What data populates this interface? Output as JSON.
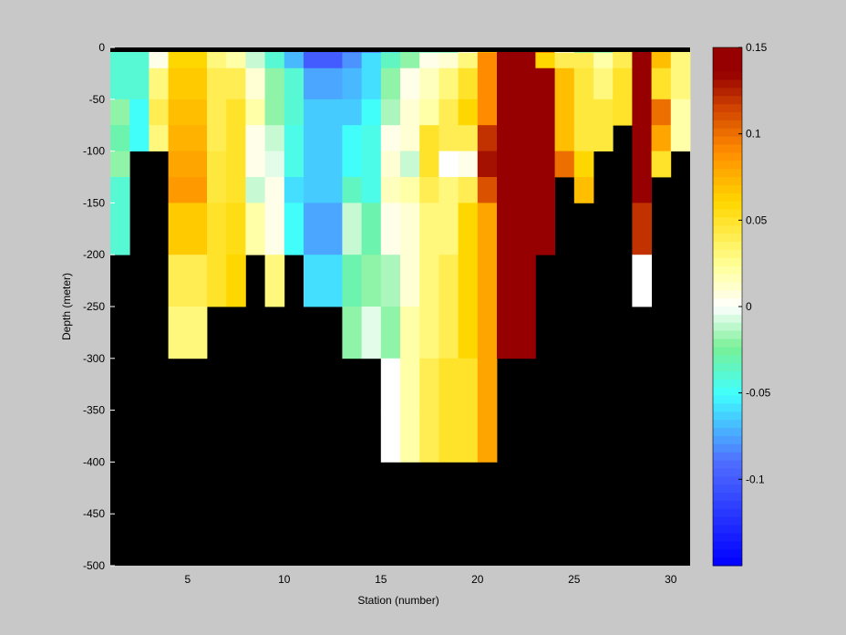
{
  "chart_data": {
    "type": "heatmap",
    "title": "",
    "xlabel": "Station (number)",
    "ylabel": "Depth (meter)",
    "xlim": [
      1,
      31
    ],
    "ylim": [
      -500,
      0
    ],
    "x_ticks": [
      5,
      10,
      15,
      20,
      25,
      30
    ],
    "y_ticks": [
      0,
      -50,
      -100,
      -150,
      -200,
      -250,
      -300,
      -350,
      -400,
      -450,
      -500
    ],
    "y_ticks_labels": [
      "0",
      "-50",
      "-100",
      "-150",
      "-200",
      "-250",
      "-300",
      "-350",
      "-400",
      "-450",
      "-500"
    ],
    "colorbar": {
      "range": [
        -0.15,
        0.15
      ],
      "ticks": [
        0.15,
        0.1,
        0.05,
        0,
        -0.05,
        -0.1
      ],
      "tick_labels": [
        "0.15",
        "0.1",
        "0.05",
        "0",
        "-0.05",
        "-0.1"
      ],
      "colormap": "jet-white"
    },
    "stations": [
      1,
      2,
      3,
      4,
      5,
      6,
      7,
      8,
      9,
      10,
      11,
      12,
      13,
      14,
      15,
      16,
      17,
      18,
      19,
      20,
      21,
      22,
      23,
      24,
      25,
      26,
      27,
      28,
      29,
      30
    ],
    "depth_bin_edges": [
      0,
      -5,
      -20,
      -50,
      -75,
      -100,
      -125,
      -150,
      -200,
      -250,
      -300,
      -350,
      -400,
      -500
    ],
    "values_by_station": [
      [
        -0.04,
        -0.04,
        -0.04,
        -0.02,
        -0.03,
        -0.02,
        -0.04,
        -0.04,
        null,
        null,
        null,
        null,
        null
      ],
      [
        -0.04,
        -0.04,
        -0.04,
        -0.05,
        -0.05,
        null,
        null,
        null,
        null,
        null,
        null,
        null,
        null
      ],
      [
        0.005,
        0.005,
        0.03,
        0.04,
        0.03,
        null,
        null,
        null,
        null,
        null,
        null,
        null,
        null
      ],
      [
        0.06,
        0.06,
        0.065,
        0.07,
        0.075,
        0.08,
        0.085,
        0.065,
        0.04,
        0.03,
        null,
        null,
        null
      ],
      [
        0.06,
        0.06,
        0.065,
        0.07,
        0.075,
        0.08,
        0.085,
        0.065,
        0.04,
        0.03,
        null,
        null,
        null
      ],
      [
        0.03,
        0.03,
        0.04,
        0.04,
        0.04,
        0.045,
        0.045,
        0.05,
        0.05,
        null,
        null,
        null,
        null
      ],
      [
        0.02,
        0.02,
        0.04,
        0.05,
        0.05,
        0.05,
        0.05,
        0.055,
        0.06,
        null,
        null,
        null,
        null
      ],
      [
        -0.01,
        -0.01,
        0.01,
        0.02,
        0.005,
        0.005,
        -0.01,
        0.02,
        null,
        null,
        null,
        null,
        null
      ],
      [
        -0.04,
        -0.04,
        -0.02,
        -0.02,
        -0.01,
        -0.005,
        0.005,
        0.005,
        0.03,
        null,
        null,
        null,
        null
      ],
      [
        -0.07,
        -0.07,
        -0.04,
        -0.04,
        -0.045,
        -0.045,
        -0.06,
        -0.05,
        null,
        null,
        null,
        null,
        null
      ],
      [
        -0.1,
        -0.1,
        -0.075,
        -0.065,
        -0.065,
        -0.065,
        -0.065,
        -0.075,
        -0.06,
        null,
        null,
        null,
        null
      ],
      [
        -0.1,
        -0.1,
        -0.075,
        -0.065,
        -0.065,
        -0.065,
        -0.065,
        -0.075,
        -0.06,
        null,
        null,
        null,
        null
      ],
      [
        -0.1,
        -0.08,
        -0.07,
        -0.065,
        -0.05,
        -0.05,
        -0.035,
        -0.01,
        -0.03,
        -0.02,
        null,
        null,
        null
      ],
      [
        -0.09,
        -0.06,
        -0.06,
        -0.05,
        -0.045,
        -0.045,
        -0.045,
        -0.03,
        -0.02,
        -0.005,
        null,
        null,
        null
      ],
      [
        -0.06,
        -0.035,
        -0.02,
        -0.015,
        0.005,
        0.01,
        0.015,
        0.005,
        -0.015,
        -0.02,
        0.0,
        0.0,
        null
      ],
      [
        -0.03,
        -0.02,
        0.005,
        0.01,
        0.01,
        -0.01,
        0.02,
        0.01,
        0.01,
        0.02,
        0.02,
        0.02,
        null
      ],
      [
        -0.035,
        0.005,
        0.015,
        0.02,
        0.05,
        0.05,
        0.04,
        0.03,
        0.03,
        0.03,
        0.04,
        0.04,
        null
      ],
      [
        -0.035,
        0.01,
        0.03,
        0.04,
        0.04,
        0.0,
        0.03,
        0.03,
        0.04,
        0.04,
        0.05,
        0.05,
        null
      ],
      [
        0.0,
        0.03,
        0.05,
        0.06,
        0.04,
        0.005,
        0.04,
        0.06,
        0.06,
        0.06,
        0.05,
        0.05,
        null
      ],
      [
        0.07,
        0.09,
        0.09,
        0.09,
        0.12,
        0.13,
        0.11,
        0.08,
        0.08,
        0.08,
        0.08,
        0.08,
        null
      ],
      [
        0.14,
        0.15,
        0.15,
        0.15,
        0.15,
        0.15,
        0.15,
        0.15,
        0.15,
        0.15,
        null,
        null,
        null
      ],
      [
        0.15,
        0.15,
        0.15,
        0.15,
        0.15,
        0.15,
        0.15,
        0.15,
        0.15,
        0.15,
        null,
        null,
        null
      ],
      [
        0.1,
        0.06,
        0.15,
        0.15,
        0.15,
        0.15,
        0.15,
        0.15,
        null,
        null,
        null,
        null,
        null
      ],
      [
        0.0,
        0.04,
        0.07,
        0.07,
        0.07,
        0.1,
        null,
        null,
        null,
        null,
        null,
        null,
        null
      ],
      [
        -0.03,
        0.04,
        0.045,
        0.045,
        0.045,
        0.06,
        0.07,
        null,
        null,
        null,
        null,
        null,
        null
      ],
      [
        -0.03,
        0.02,
        0.03,
        0.045,
        0.045,
        null,
        null,
        null,
        null,
        null,
        null,
        null,
        null
      ],
      [
        0.04,
        0.04,
        0.05,
        0.05,
        null,
        null,
        null,
        null,
        null,
        null,
        null,
        null,
        null
      ],
      [
        0.15,
        0.15,
        0.15,
        0.15,
        0.15,
        0.15,
        0.15,
        0.12,
        0.0,
        null,
        null,
        null,
        null
      ],
      [
        0.07,
        0.07,
        0.05,
        0.1,
        0.08,
        0.05,
        null,
        null,
        null,
        null,
        null,
        null,
        null
      ],
      [
        0.03,
        0.03,
        0.03,
        0.02,
        0.02,
        null,
        null,
        null,
        null,
        null,
        null,
        null,
        null
      ]
    ]
  }
}
